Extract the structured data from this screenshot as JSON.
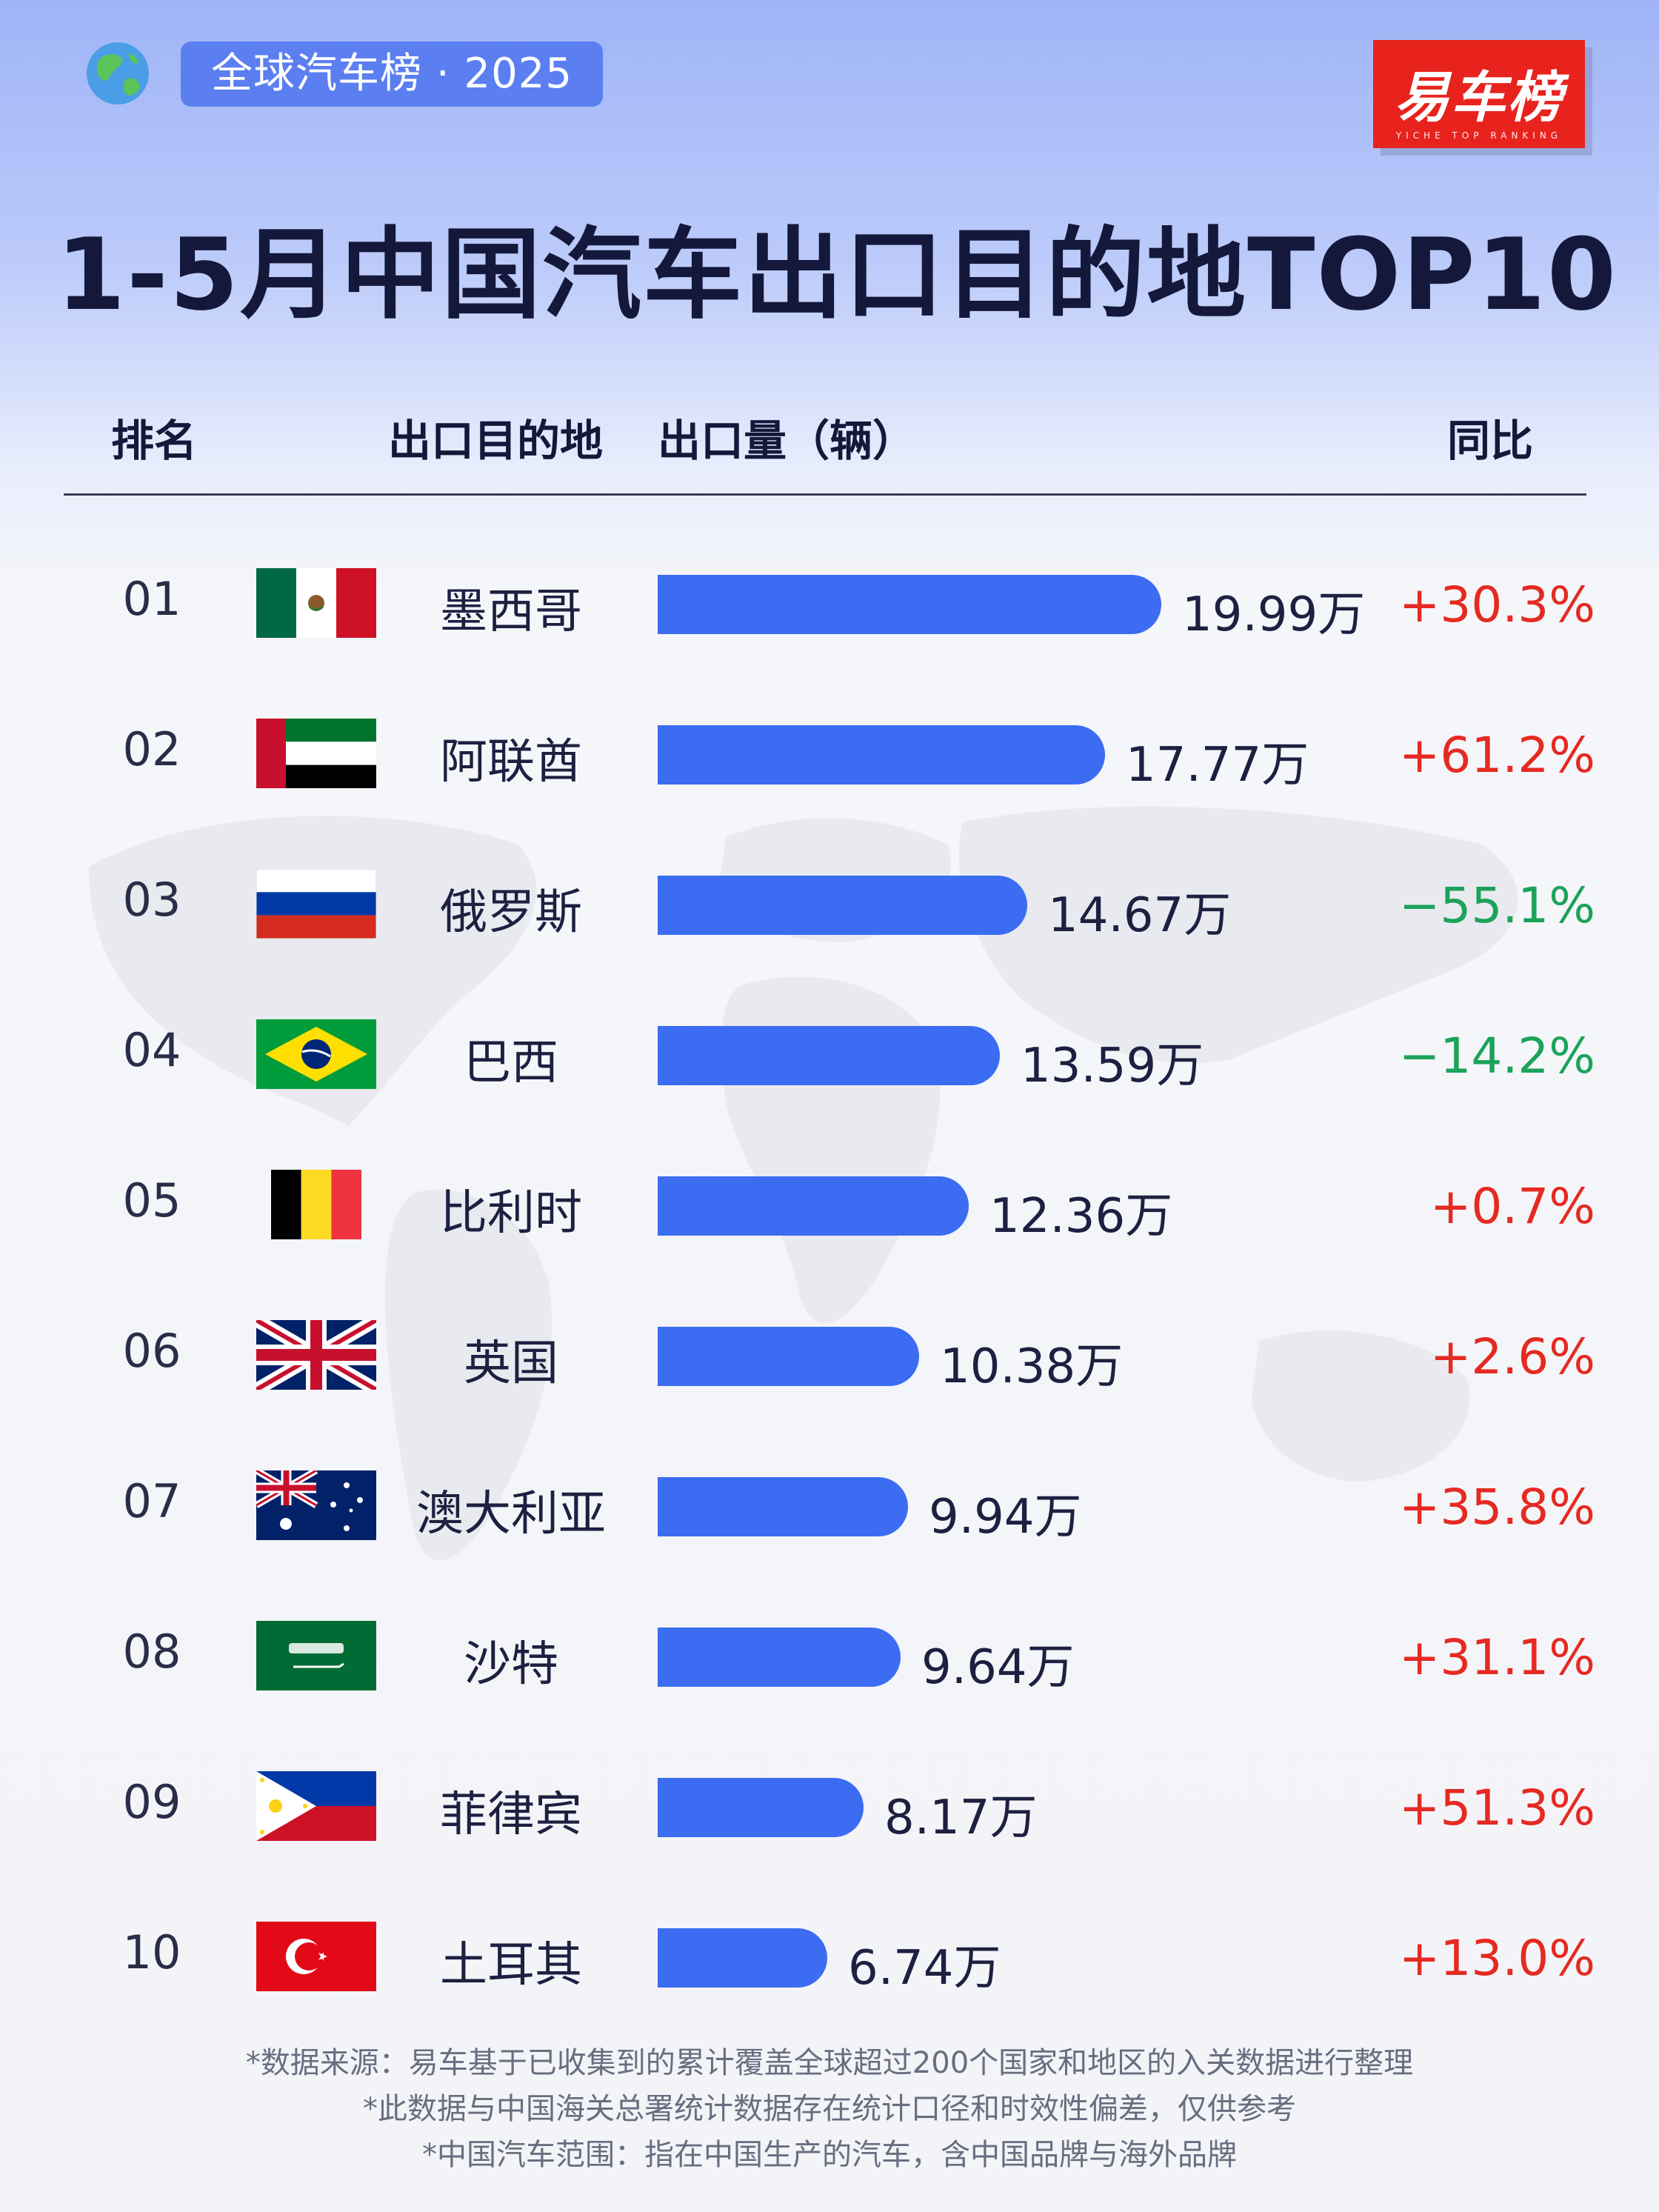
{
  "tag": {
    "globe_icon": "globe-icon",
    "label": "全球汽车榜 · 2025"
  },
  "logo": {
    "text": "易车榜",
    "sub": "YICHE TOP RANKING"
  },
  "title": "1-5月中国汽车出口目的地TOP10",
  "headers": {
    "rank": "排名",
    "destination": "出口目的地",
    "volume": "出口量（辆）",
    "yoy": "同比"
  },
  "colors": {
    "bar": "#3b6cf2",
    "positive": "#e52a22",
    "negative": "#1ba35a"
  },
  "chart_data": {
    "type": "bar",
    "orientation": "horizontal",
    "unit": "万",
    "categories": [
      "墨西哥",
      "阿联酋",
      "俄罗斯",
      "巴西",
      "比利时",
      "英国",
      "澳大利亚",
      "沙特",
      "菲律宾",
      "土耳其"
    ],
    "values": [
      19.99,
      17.77,
      14.67,
      13.59,
      12.36,
      10.38,
      9.94,
      9.64,
      8.17,
      6.74
    ],
    "rows": [
      {
        "rank": "01",
        "country": "墨西哥",
        "flag": "mexico-flag-icon",
        "value": 19.99,
        "label": "19.99万",
        "yoy": "+30.3%",
        "yoy_dir": "up"
      },
      {
        "rank": "02",
        "country": "阿联酋",
        "flag": "uae-flag-icon",
        "value": 17.77,
        "label": "17.77万",
        "yoy": "+61.2%",
        "yoy_dir": "up"
      },
      {
        "rank": "03",
        "country": "俄罗斯",
        "flag": "russia-flag-icon",
        "value": 14.67,
        "label": "14.67万",
        "yoy": "−55.1%",
        "yoy_dir": "down"
      },
      {
        "rank": "04",
        "country": "巴西",
        "flag": "brazil-flag-icon",
        "value": 13.59,
        "label": "13.59万",
        "yoy": "−14.2%",
        "yoy_dir": "down"
      },
      {
        "rank": "05",
        "country": "比利时",
        "flag": "belgium-flag-icon",
        "value": 12.36,
        "label": "12.36万",
        "yoy": "+0.7%",
        "yoy_dir": "up"
      },
      {
        "rank": "06",
        "country": "英国",
        "flag": "uk-flag-icon",
        "value": 10.38,
        "label": "10.38万",
        "yoy": "+2.6%",
        "yoy_dir": "up"
      },
      {
        "rank": "07",
        "country": "澳大利亚",
        "flag": "australia-flag-icon",
        "value": 9.94,
        "label": "9.94万",
        "yoy": "+35.8%",
        "yoy_dir": "up"
      },
      {
        "rank": "08",
        "country": "沙特",
        "flag": "saudi-flag-icon",
        "value": 9.64,
        "label": "9.64万",
        "yoy": "+31.1%",
        "yoy_dir": "up"
      },
      {
        "rank": "09",
        "country": "菲律宾",
        "flag": "philippines-flag-icon",
        "value": 8.17,
        "label": "8.17万",
        "yoy": "+51.3%",
        "yoy_dir": "up"
      },
      {
        "rank": "10",
        "country": "土耳其",
        "flag": "turkey-flag-icon",
        "value": 6.74,
        "label": "6.74万",
        "yoy": "+13.0%",
        "yoy_dir": "up"
      }
    ]
  },
  "notes": [
    "*数据来源：易车基于已收集到的累计覆盖全球超过200个国家和地区的入关数据进行整理",
    "*此数据与中国海关总署统计数据存在统计口径和时效性偏差，仅供参考",
    "*中国汽车范围：指在中国生产的汽车，含中国品牌与海外品牌"
  ]
}
